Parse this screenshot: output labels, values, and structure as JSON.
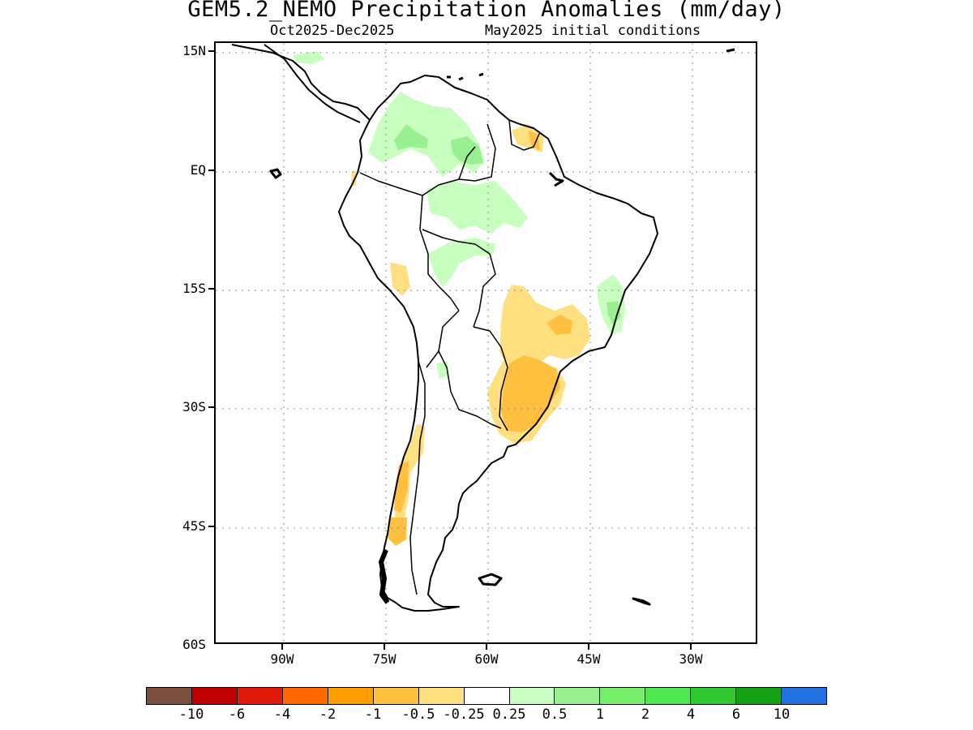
{
  "title": "GEM5.2_NEMO Precipitation Anomalies (mm/day)",
  "subtitle_left": "Oct2025-Dec2025",
  "subtitle_right": "May2025 initial conditions",
  "lat_labels": [
    "15N",
    "EQ",
    "15S",
    "30S",
    "45S",
    "60S"
  ],
  "lon_labels": [
    "90W",
    "75W",
    "60W",
    "45W",
    "30W"
  ],
  "colorbar": {
    "colors": [
      "#7b5040",
      "#c00000",
      "#e01a0a",
      "#ff6a00",
      "#ffa000",
      "#ffc040",
      "#ffe080",
      "#ffffff",
      "#c8ffc0",
      "#98f090",
      "#78ef6a",
      "#50e850",
      "#32c832",
      "#14a014",
      "#2070e0"
    ],
    "labels": [
      "-10",
      "-6",
      "-4",
      "-2",
      "-1",
      "-0.5",
      "-0.25",
      "0.25",
      "0.5",
      "1",
      "2",
      "4",
      "6",
      "10"
    ]
  },
  "map_regions": [
    {
      "name": "northern-colombia-venezuela-wet-anomaly",
      "level": "0.25 to 0.5",
      "color": "#c8ffc0"
    },
    {
      "name": "amazon-wet-anomaly",
      "level": "0.25 to 0.5",
      "color": "#c8ffc0"
    },
    {
      "name": "eastern-brazil-coast-wet-anomaly",
      "level": "0.5 to 1",
      "color": "#98f090"
    },
    {
      "name": "central-brazil-dry-anomaly",
      "level": "-0.5 to -0.25",
      "color": "#ffe080"
    },
    {
      "name": "southern-brazil-uruguay-dry-anomaly",
      "level": "-1 to -0.5",
      "color": "#ffc040"
    },
    {
      "name": "chile-coast-dry-anomaly",
      "level": "-1 to -0.5",
      "color": "#ffc040"
    },
    {
      "name": "guianas-dry-anomaly",
      "level": "-1 to -0.5",
      "color": "#ffc040"
    },
    {
      "name": "peru-dry-anomaly",
      "level": "-0.5 to -0.25",
      "color": "#ffe080"
    }
  ]
}
